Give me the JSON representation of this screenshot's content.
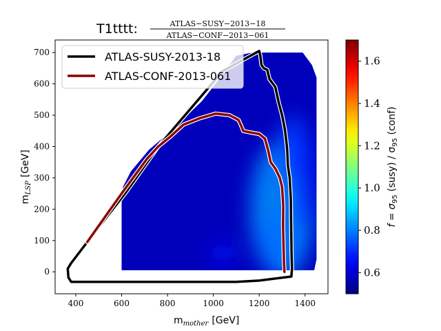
{
  "chart_data": {
    "type": "heatmap",
    "title": {
      "prefix": "T1tttt:",
      "numerator": "ATLAS−SUSY−2013−18",
      "denominator": "ATLAS−CONF−2013−061"
    },
    "xlabel": "m",
    "xlabel_sub": "mother",
    "xlabel_unit": "[GeV]",
    "ylabel": "m",
    "ylabel_sub": "LSP",
    "ylabel_unit": "[GeV]",
    "xlim": [
      310,
      1500
    ],
    "ylim": [
      -70,
      740
    ],
    "xticks": [
      400,
      600,
      800,
      1000,
      1200,
      1400
    ],
    "yticks": [
      0,
      100,
      200,
      300,
      400,
      500,
      600,
      700
    ],
    "colorbar": {
      "label": "f = σ95 (susy) / σ95 (conf)",
      "label_parts": [
        "f = σ",
        "95",
        " (susy) / σ",
        "95",
        " (conf)"
      ],
      "range": [
        0.5,
        1.7
      ],
      "ticks": [
        "0.6",
        "0.8",
        "1.0",
        "1.2",
        "1.4",
        "1.6"
      ],
      "tick_values": [
        0.6,
        0.8,
        1.0,
        1.2,
        1.4,
        1.6
      ],
      "colormap": "jet"
    },
    "heatmap_region": [
      [
        600,
        5
      ],
      [
        1440,
        5
      ],
      [
        1450,
        40
      ],
      [
        1450,
        620
      ],
      [
        1430,
        660
      ],
      [
        1390,
        700
      ],
      [
        1170,
        700
      ],
      [
        1100,
        690
      ],
      [
        1020,
        610
      ],
      [
        950,
        545
      ],
      [
        880,
        495
      ],
      [
        800,
        440
      ],
      [
        720,
        390
      ],
      [
        640,
        320
      ],
      [
        605,
        270
      ],
      [
        600,
        220
      ]
    ],
    "heatmap_field": {
      "base_value": 0.57,
      "blobs": [
        {
          "x": 1300,
          "y": 200,
          "rx": 140,
          "ry": 220,
          "value": 0.82
        },
        {
          "x": 1280,
          "y": 90,
          "rx": 90,
          "ry": 90,
          "value": 0.78
        },
        {
          "x": 1350,
          "y": 390,
          "rx": 70,
          "ry": 110,
          "value": 0.72
        },
        {
          "x": 1390,
          "y": 290,
          "rx": 50,
          "ry": 160,
          "value": 0.7
        },
        {
          "x": 1040,
          "y": 60,
          "rx": 60,
          "ry": 30,
          "value": 0.66
        }
      ]
    },
    "series": [
      {
        "name": "ATLAS-SUSY-2013-18",
        "color": "#000000",
        "points": [
          [
            1340,
            -15
          ],
          [
            1200,
            -28
          ],
          [
            1100,
            -32
          ],
          [
            900,
            -32
          ],
          [
            700,
            -32
          ],
          [
            500,
            -32
          ],
          [
            380,
            -32
          ],
          [
            368,
            -18
          ],
          [
            365,
            10
          ],
          [
            380,
            28
          ],
          [
            450,
            95
          ],
          [
            620,
            255
          ],
          [
            760,
            400
          ],
          [
            900,
            520
          ],
          [
            1040,
            640
          ],
          [
            1150,
            685
          ],
          [
            1200,
            705
          ],
          [
            1205,
            690
          ],
          [
            1210,
            660
          ],
          [
            1220,
            650
          ],
          [
            1235,
            645
          ],
          [
            1245,
            615
          ],
          [
            1270,
            590
          ],
          [
            1285,
            540
          ],
          [
            1300,
            500
          ],
          [
            1312,
            455
          ],
          [
            1318,
            420
          ],
          [
            1322,
            390
          ],
          [
            1325,
            340
          ],
          [
            1333,
            300
          ],
          [
            1336,
            260
          ],
          [
            1338,
            230
          ],
          [
            1339,
            170
          ],
          [
            1340,
            110
          ],
          [
            1341,
            60
          ],
          [
            1343,
            10
          ],
          [
            1340,
            -15
          ]
        ]
      },
      {
        "name": "ATLAS-CONF-2013-061",
        "color": "#8b0000",
        "points": [
          [
            450,
            95
          ],
          [
            600,
            250
          ],
          [
            710,
            360
          ],
          [
            760,
            400
          ],
          [
            810,
            430
          ],
          [
            870,
            470
          ],
          [
            940,
            490
          ],
          [
            1010,
            505
          ],
          [
            1070,
            500
          ],
          [
            1110,
            485
          ],
          [
            1125,
            460
          ],
          [
            1130,
            450
          ],
          [
            1160,
            445
          ],
          [
            1200,
            440
          ],
          [
            1225,
            425
          ],
          [
            1240,
            385
          ],
          [
            1250,
            350
          ],
          [
            1270,
            330
          ],
          [
            1290,
            300
          ],
          [
            1300,
            270
          ],
          [
            1305,
            210
          ],
          [
            1304,
            150
          ],
          [
            1306,
            90
          ],
          [
            1308,
            30
          ],
          [
            1310,
            0
          ]
        ]
      }
    ],
    "legend": {
      "position": "top-left",
      "entries": [
        "ATLAS-SUSY-2013-18",
        "ATLAS-CONF-2013-061"
      ]
    },
    "grid": false
  }
}
